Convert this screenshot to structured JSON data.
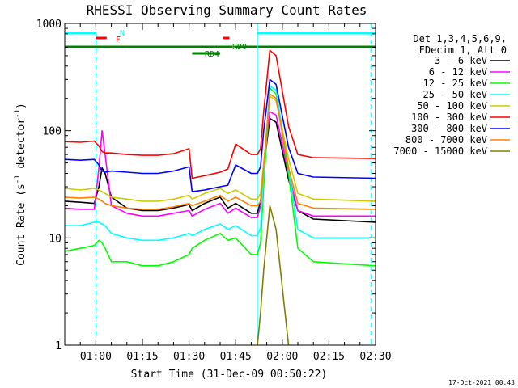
{
  "chart_data": {
    "type": "line",
    "title": "RHESSI Observing Summary Count Rates",
    "xlabel": "Start Time (31-Dec-09 00:50:22)",
    "ylabel_main": "Count Rate (s",
    "ylabel_sup1": "-1",
    "ylabel_mid": " detector",
    "ylabel_sup2": "-1",
    "ylabel_end": ")",
    "y_scale": "log",
    "ylim": [
      1,
      1000
    ],
    "xlim_minutes_after_0050": [
      0,
      100
    ],
    "x_ticks": [
      {
        "label": "01:00",
        "minutes": 10
      },
      {
        "label": "01:15",
        "minutes": 25
      },
      {
        "label": "01:30",
        "minutes": 40
      },
      {
        "label": "01:45",
        "minutes": 55
      },
      {
        "label": "02:00",
        "minutes": 70
      },
      {
        "label": "02:15",
        "minutes": 85
      },
      {
        "label": "02:30",
        "minutes": 100
      }
    ],
    "y_ticks": [
      {
        "label": "1",
        "value": 1
      },
      {
        "label": "10",
        "value": 10
      },
      {
        "label": "100",
        "value": 100
      },
      {
        "label": "1000",
        "value": 1000
      }
    ],
    "legend_header": [
      "Det 1,3,4,5,6,9,",
      "FDecim 1, Att 0"
    ],
    "legend_placement": "right",
    "timestamp": "17-Oct-2021 00:43",
    "flags": [
      {
        "label": "N",
        "color": "#00ffff",
        "segments": [
          [
            0,
            10
          ],
          [
            62,
            100
          ]
        ]
      },
      {
        "label": "F",
        "color": "#ff0000",
        "segments": [
          [
            10,
            13.5
          ]
        ]
      },
      {
        "label": "RD0",
        "color": "#008000",
        "segments": [
          [
            0,
            54
          ],
          [
            54.5,
            100
          ]
        ]
      },
      {
        "label": "RD4",
        "color": "#008000",
        "segments": [
          [
            41,
            50
          ]
        ]
      },
      {
        "label": "",
        "color": "#ff0000",
        "segments": [
          [
            51,
            53
          ]
        ]
      }
    ],
    "vlines": [
      {
        "minutes": 10,
        "color": "#00ffff",
        "style": "dashed"
      },
      {
        "minutes": 62,
        "color": "#00ffff",
        "style": "solid"
      },
      {
        "minutes": 98.5,
        "color": "#00ffff",
        "style": "dashed"
      }
    ],
    "x": [
      0,
      5,
      9.5,
      11,
      12,
      13,
      15,
      20,
      25,
      30,
      35,
      40,
      41,
      45,
      50,
      52.5,
      55,
      60,
      62,
      63,
      64,
      66,
      68,
      72,
      75,
      80,
      100
    ],
    "series": [
      {
        "name": "3 - 6 keV",
        "color": "#000000",
        "values": [
          22,
          21.5,
          21,
          30,
          45,
          40,
          24,
          19,
          18,
          18,
          19,
          20.5,
          18,
          21,
          24,
          19,
          21,
          17,
          17,
          22,
          45,
          130,
          120,
          35,
          18,
          15,
          14
        ]
      },
      {
        "name": "6 - 12 keV",
        "color": "#ff00ff",
        "values": [
          19,
          18.5,
          18.5,
          45,
          100,
          60,
          20,
          17,
          16,
          16,
          17,
          18,
          16,
          18.5,
          21,
          17,
          19,
          15.5,
          15.5,
          20,
          45,
          150,
          140,
          40,
          18,
          16,
          16
        ]
      },
      {
        "name": "12 - 25 keV",
        "color": "#00ff00",
        "values": [
          7.5,
          8,
          8.5,
          9.5,
          9,
          8,
          6,
          6,
          5.5,
          5.5,
          6,
          7,
          8,
          9.5,
          11,
          9.5,
          10,
          7,
          7,
          9,
          30,
          250,
          220,
          40,
          8,
          6,
          5.5
        ]
      },
      {
        "name": "25 - 50 keV",
        "color": "#00ffff",
        "values": [
          13,
          13,
          14,
          14,
          13.5,
          13,
          11,
          10,
          9.5,
          9.5,
          10,
          11,
          10.5,
          12,
          13.5,
          12,
          13,
          10.5,
          10.5,
          12.5,
          40,
          260,
          240,
          45,
          12,
          10,
          10
        ]
      },
      {
        "name": "50 - 100 keV",
        "color": "#cccc00",
        "values": [
          29,
          28,
          29,
          28,
          27,
          26,
          24,
          23,
          22,
          22,
          23,
          25,
          23,
          26,
          29,
          26,
          28,
          23,
          23,
          26,
          50,
          210,
          190,
          55,
          26,
          23,
          22
        ]
      },
      {
        "name": "100 - 300 keV",
        "color": "#ff0000",
        "values": [
          79,
          78,
          80,
          72,
          64,
          62,
          62,
          60,
          59,
          59,
          61,
          68,
          36,
          38,
          41,
          44,
          75,
          60,
          60,
          68,
          150,
          560,
          500,
          110,
          60,
          56,
          55
        ]
      },
      {
        "name": "300 - 800 keV",
        "color": "#0000ff",
        "values": [
          54,
          53,
          54,
          48,
          42,
          41,
          42,
          41,
          40,
          40,
          42,
          46,
          27,
          28,
          30,
          31,
          48,
          40,
          40,
          46,
          100,
          300,
          270,
          70,
          40,
          37,
          36
        ]
      },
      {
        "name": "800 - 7000 keV",
        "color": "#ff8000",
        "values": [
          24,
          23.5,
          24,
          23,
          22,
          21,
          20,
          19,
          18.5,
          18.5,
          19.5,
          21,
          20,
          22,
          25,
          22,
          24,
          20,
          20,
          22,
          45,
          220,
          200,
          45,
          21,
          19,
          18.5
        ]
      },
      {
        "name": "7000 - 15000 keV",
        "color": "#808000",
        "values": [
          null,
          null,
          null,
          null,
          null,
          null,
          null,
          null,
          null,
          null,
          null,
          null,
          null,
          null,
          null,
          null,
          null,
          null,
          1,
          2,
          5,
          20,
          12,
          1,
          null,
          null,
          null
        ]
      }
    ]
  }
}
